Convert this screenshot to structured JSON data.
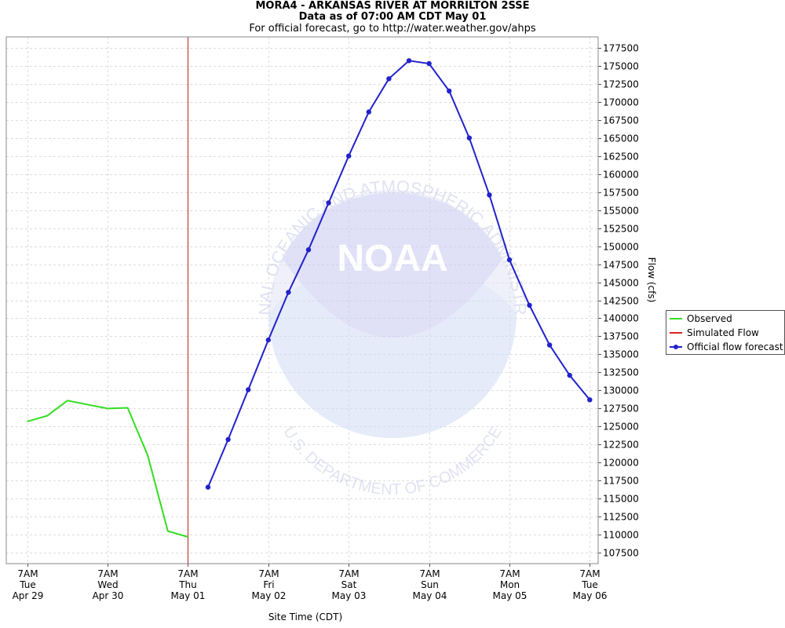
{
  "header": {
    "title": "MORA4 - ARKANSAS RIVER AT MORRILTON 2SSE",
    "subtitle": "Data as of 07:00 AM CDT May 01",
    "note": "For official forecast, go to http://water.weather.gov/ahps"
  },
  "colors": {
    "observed": "#33dd22",
    "simulated": "#dd2222",
    "forecast": "#2222cc",
    "grid": "#dddddd",
    "now_line": "#bb2222"
  },
  "chart_data": {
    "type": "line",
    "title": "MORA4 - ARKANSAS RIVER AT MORRILTON 2SSE",
    "xlabel": "Site Time (CDT)",
    "ylabel": "Flow (cfs)",
    "ylim": [
      106000,
      179000
    ],
    "y_ticks": [
      107500,
      110000,
      112500,
      115000,
      117500,
      120000,
      122500,
      125000,
      127500,
      130000,
      132500,
      135000,
      137500,
      140000,
      142500,
      145000,
      147500,
      150000,
      152500,
      155000,
      157500,
      160000,
      162500,
      165000,
      167500,
      170000,
      172500,
      175000,
      177500
    ],
    "x_axis": {
      "min": "2025-04-29T00:45",
      "max": "2025-05-06T09:30",
      "ticks": [
        {
          "t": "2025-04-29T07:00",
          "l1": "7AM",
          "l2": "Tue",
          "l3": "Apr 29"
        },
        {
          "t": "2025-04-30T07:00",
          "l1": "7AM",
          "l2": "Wed",
          "l3": "Apr 30"
        },
        {
          "t": "2025-05-01T07:00",
          "l1": "7AM",
          "l2": "Thu",
          "l3": "May 01"
        },
        {
          "t": "2025-05-02T07:00",
          "l1": "7AM",
          "l2": "Fri",
          "l3": "May 02"
        },
        {
          "t": "2025-05-03T07:00",
          "l1": "7AM",
          "l2": "Sat",
          "l3": "May 03"
        },
        {
          "t": "2025-05-04T07:00",
          "l1": "7AM",
          "l2": "Sun",
          "l3": "May 04"
        },
        {
          "t": "2025-05-05T07:00",
          "l1": "7AM",
          "l2": "Mon",
          "l3": "May 05"
        },
        {
          "t": "2025-05-06T07:00",
          "l1": "7AM",
          "l2": "Tue",
          "l3": "May 06"
        }
      ]
    },
    "current_time": "2025-05-01T07:00",
    "legend_position": "right",
    "grid": true,
    "series": [
      {
        "name": "Observed",
        "key": "observed",
        "markers": false,
        "points": [
          [
            "2025-04-29T07:00",
            125700
          ],
          [
            "2025-04-29T13:00",
            126500
          ],
          [
            "2025-04-29T19:00",
            128600
          ],
          [
            "2025-04-30T07:00",
            127500
          ],
          [
            "2025-04-30T13:00",
            127600
          ],
          [
            "2025-04-30T19:00",
            121000
          ],
          [
            "2025-05-01T01:00",
            110500
          ],
          [
            "2025-05-01T07:00",
            109700
          ]
        ]
      },
      {
        "name": "Simulated Flow",
        "key": "simulated",
        "markers": false,
        "points": []
      },
      {
        "name": "Official flow forecast",
        "key": "forecast",
        "markers": true,
        "points": [
          [
            "2025-05-01T13:00",
            116600
          ],
          [
            "2025-05-01T19:00",
            123200
          ],
          [
            "2025-05-02T01:00",
            130100
          ],
          [
            "2025-05-02T07:00",
            137000
          ],
          [
            "2025-05-02T13:00",
            143600
          ],
          [
            "2025-05-02T19:00",
            149500
          ],
          [
            "2025-05-03T01:00",
            156000
          ],
          [
            "2025-05-03T07:00",
            162500
          ],
          [
            "2025-05-03T13:00",
            168600
          ],
          [
            "2025-05-03T19:00",
            173200
          ],
          [
            "2025-05-04T01:00",
            175700
          ],
          [
            "2025-05-04T07:00",
            175300
          ],
          [
            "2025-05-04T13:00",
            171500
          ],
          [
            "2025-05-04T19:00",
            165000
          ],
          [
            "2025-05-05T01:00",
            157100
          ],
          [
            "2025-05-05T07:00",
            148100
          ],
          [
            "2025-05-05T13:00",
            141800
          ],
          [
            "2025-05-05T19:00",
            136300
          ],
          [
            "2025-05-06T01:00",
            132100
          ],
          [
            "2025-05-06T07:00",
            128700
          ]
        ]
      }
    ]
  },
  "watermark": {
    "logo_text": "NOAA",
    "ring_top": "NATIONAL OCEANIC AND ATMOSPHERIC ADMINISTRATION",
    "ring_bottom": "U.S. DEPARTMENT OF COMMERCE"
  }
}
